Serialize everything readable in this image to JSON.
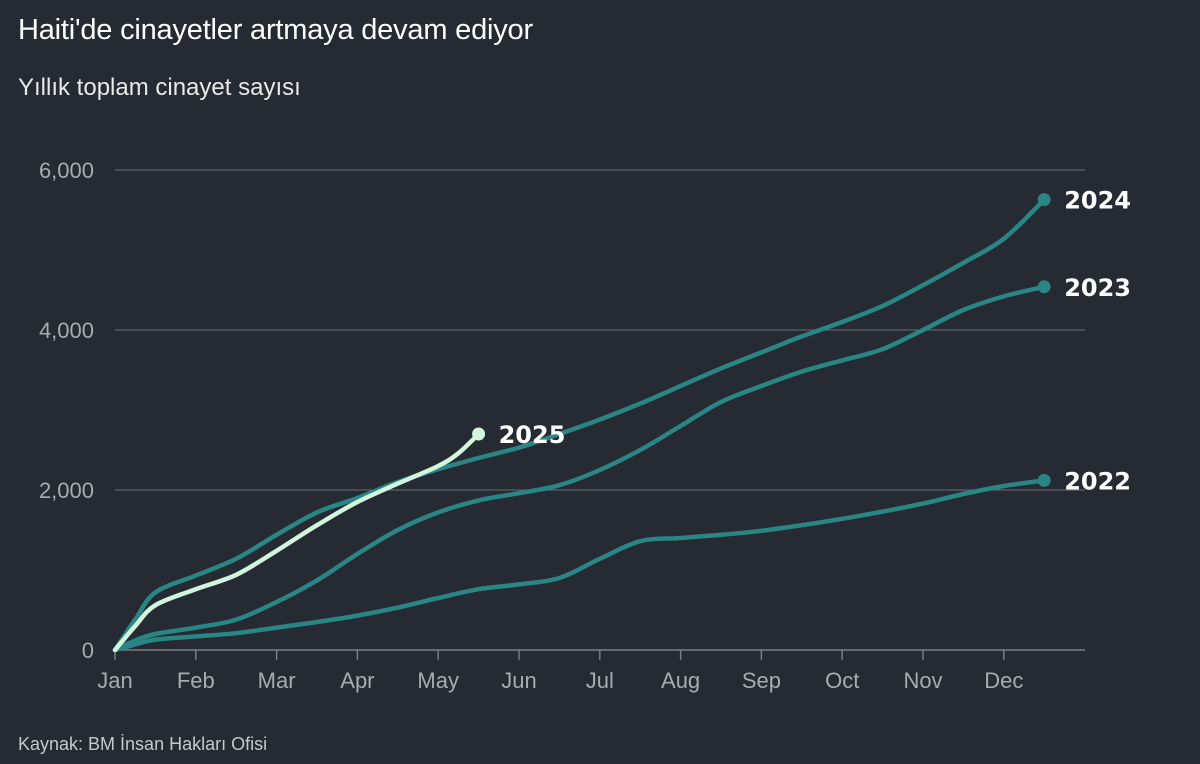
{
  "title": "Haiti'de cinayetler artmaya devam ediyor",
  "subtitle": "Yıllık toplam cinayet sayısı",
  "source": "Kaynak: BM İnsan Hakları Ofisi",
  "colors": {
    "background": "#262a33",
    "series_main": "#2a8585",
    "series_2025": "#d3f4dd",
    "gridline": "#6b6e74",
    "tick_text": "#a9abb0"
  },
  "chart_data": {
    "type": "line",
    "title": "Haiti'de cinayetler artmaya devam ediyor",
    "subtitle": "Yıllık toplam cinayet sayısı",
    "x_ticks": [
      "Jan",
      "Feb",
      "Mar",
      "Apr",
      "May",
      "Jun",
      "Jul",
      "Aug",
      "Sep",
      "Oct",
      "Nov",
      "Dec"
    ],
    "xlim": [
      0,
      11.5
    ],
    "y_ticks": [
      0,
      2000,
      4000,
      6000
    ],
    "y_tick_labels": [
      "0",
      "2,000",
      "4,000",
      "6,000"
    ],
    "ylim": [
      0,
      6000
    ],
    "grid": true,
    "series": [
      {
        "name": "2022",
        "color": "#2a8585",
        "x": [
          0,
          0.25,
          0.5,
          1,
          1.5,
          2,
          2.5,
          3,
          3.5,
          4,
          4.5,
          5,
          5.5,
          6,
          6.5,
          7,
          7.5,
          8,
          8.5,
          9,
          9.5,
          10,
          10.5,
          11,
          11.5
        ],
        "values": [
          0,
          70,
          130,
          170,
          210,
          280,
          350,
          430,
          530,
          650,
          760,
          820,
          900,
          1140,
          1360,
          1400,
          1440,
          1490,
          1560,
          1640,
          1730,
          1830,
          1950,
          2050,
          2120
        ]
      },
      {
        "name": "2023",
        "color": "#2a8585",
        "x": [
          0,
          0.25,
          0.5,
          1,
          1.5,
          2,
          2.5,
          3,
          3.5,
          4,
          4.5,
          5,
          5.5,
          6,
          6.5,
          7,
          7.5,
          8,
          8.5,
          9,
          9.5,
          10,
          10.5,
          11,
          11.5
        ],
        "values": [
          0,
          120,
          200,
          280,
          380,
          600,
          870,
          1200,
          1500,
          1720,
          1870,
          1960,
          2060,
          2250,
          2500,
          2800,
          3100,
          3300,
          3480,
          3620,
          3760,
          4000,
          4250,
          4420,
          4540
        ]
      },
      {
        "name": "2024",
        "color": "#2a8585",
        "x": [
          0,
          0.25,
          0.5,
          1,
          1.5,
          2,
          2.5,
          3,
          3.5,
          4,
          4.5,
          5,
          5.5,
          6,
          6.5,
          7,
          7.5,
          8,
          8.5,
          9,
          9.5,
          10,
          10.5,
          11,
          11.5
        ],
        "values": [
          0,
          380,
          720,
          930,
          1140,
          1440,
          1720,
          1900,
          2100,
          2260,
          2400,
          2530,
          2700,
          2880,
          3080,
          3300,
          3520,
          3720,
          3920,
          4100,
          4300,
          4560,
          4840,
          5140,
          5630
        ]
      },
      {
        "name": "2025",
        "color": "#d3f4dd",
        "x": [
          0,
          0.25,
          0.5,
          1,
          1.5,
          2,
          2.5,
          3,
          3.5,
          4,
          4.25,
          4.5
        ],
        "values": [
          0,
          300,
          560,
          760,
          940,
          1240,
          1560,
          1850,
          2080,
          2300,
          2460,
          2700
        ]
      }
    ]
  }
}
